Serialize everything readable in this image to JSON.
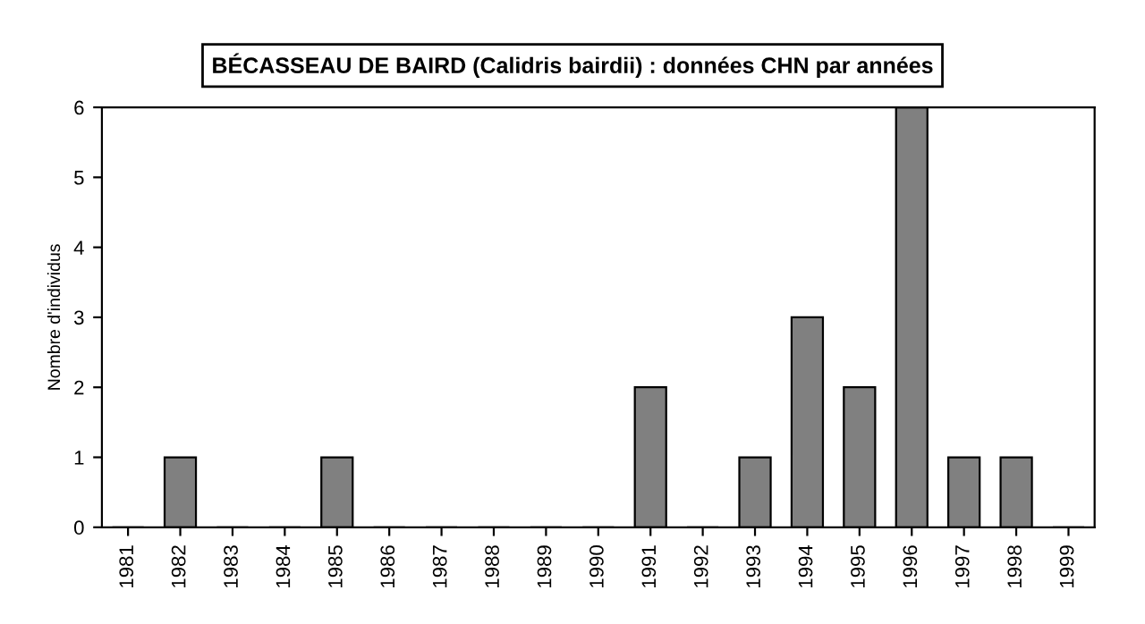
{
  "chart_data": {
    "type": "bar",
    "title": "BÉCASSEAU DE BAIRD (Calidris bairdii) : données CHN par années",
    "ylabel": "Nombre d'individus",
    "categories": [
      "1981",
      "1982",
      "1983",
      "1984",
      "1985",
      "1986",
      "1987",
      "1988",
      "1989",
      "1990",
      "1991",
      "1992",
      "1993",
      "1994",
      "1995",
      "1996",
      "1997",
      "1998",
      "1999"
    ],
    "values": [
      0,
      1,
      0,
      0,
      1,
      0,
      0,
      0,
      0,
      0,
      2,
      0,
      1,
      3,
      2,
      6,
      1,
      1,
      0
    ],
    "color": "#808080",
    "ylim": [
      0,
      6
    ],
    "yticks": [
      0,
      1,
      2,
      3,
      4,
      5,
      6
    ],
    "grid": false,
    "legend": false
  }
}
